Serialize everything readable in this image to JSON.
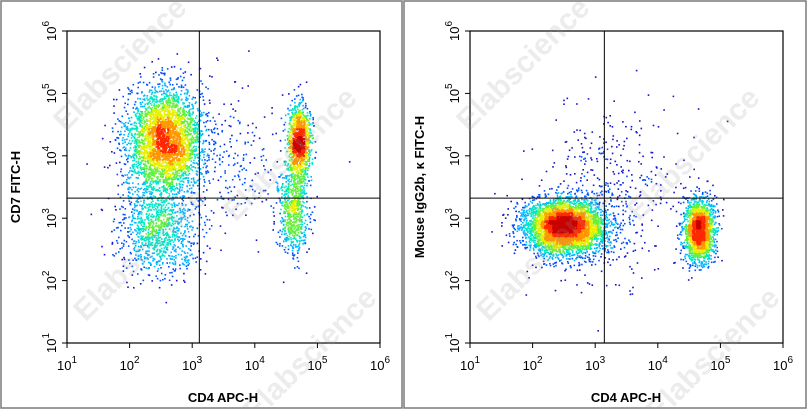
{
  "watermark": "Elabscience",
  "colors": {
    "density_scale": [
      "#1414c8",
      "#0050ff",
      "#00b4ff",
      "#00e6c8",
      "#64f03c",
      "#e6f000",
      "#ff9600",
      "#ff2800",
      "#c80000"
    ],
    "gate_line": "#000000",
    "panel_border": "#7a7a7a"
  },
  "chart_data": [
    {
      "type": "scatter",
      "subtype": "flow-cytometry-density-dot-plot",
      "xlabel": "CD4 APC-H",
      "ylabel": "CD7 FITC-H",
      "xscale": "log",
      "yscale": "log",
      "xlim": [
        10,
        1000000
      ],
      "ylim": [
        10,
        1000000
      ],
      "x_ticks": [
        10,
        100,
        1000,
        10000,
        100000,
        1000000
      ],
      "y_ticks": [
        10,
        100,
        1000,
        10000,
        100000,
        1000000
      ],
      "x_tick_labels": [
        {
          "base": "10",
          "exp": "1"
        },
        {
          "base": "10",
          "exp": "2"
        },
        {
          "base": "10",
          "exp": "3"
        },
        {
          "base": "10",
          "exp": "4"
        },
        {
          "base": "10",
          "exp": "5"
        },
        {
          "base": "10",
          "exp": "6"
        }
      ],
      "y_tick_labels": [
        {
          "base": "10",
          "exp": "1"
        },
        {
          "base": "10",
          "exp": "2"
        },
        {
          "base": "10",
          "exp": "3"
        },
        {
          "base": "10",
          "exp": "4"
        },
        {
          "base": "10",
          "exp": "5"
        },
        {
          "base": "10",
          "exp": "6"
        }
      ],
      "quadrant_gate": {
        "x": 1300,
        "y": 2100
      },
      "populations": [
        {
          "log_x_center": 2.55,
          "log_y_center": 4.25,
          "log_x_sd": 0.3,
          "log_y_sd": 0.42,
          "weight": 0.52
        },
        {
          "log_x_center": 2.45,
          "log_y_center": 2.85,
          "log_x_sd": 0.32,
          "log_y_sd": 0.35,
          "weight": 0.16
        },
        {
          "log_x_center": 4.7,
          "log_y_center": 4.2,
          "log_x_sd": 0.09,
          "log_y_sd": 0.32,
          "weight": 0.18
        },
        {
          "log_x_center": 4.6,
          "log_y_center": 3.1,
          "log_x_sd": 0.12,
          "log_y_sd": 0.35,
          "weight": 0.1
        },
        {
          "log_x_center": 3.5,
          "log_y_center": 3.9,
          "log_x_sd": 0.55,
          "log_y_sd": 0.55,
          "weight": 0.04
        }
      ],
      "grid": false,
      "legend": "none"
    },
    {
      "type": "scatter",
      "subtype": "flow-cytometry-density-dot-plot",
      "xlabel": "CD4 APC-H",
      "ylabel": "Mouse IgG2b, κ FITC-H",
      "xscale": "log",
      "yscale": "log",
      "xlim": [
        10,
        1000000
      ],
      "ylim": [
        10,
        1000000
      ],
      "x_ticks": [
        10,
        100,
        1000,
        10000,
        100000,
        1000000
      ],
      "y_ticks": [
        10,
        100,
        1000,
        10000,
        100000,
        1000000
      ],
      "x_tick_labels": [
        {
          "base": "10",
          "exp": "1"
        },
        {
          "base": "10",
          "exp": "2"
        },
        {
          "base": "10",
          "exp": "3"
        },
        {
          "base": "10",
          "exp": "4"
        },
        {
          "base": "10",
          "exp": "5"
        },
        {
          "base": "10",
          "exp": "6"
        }
      ],
      "y_tick_labels": [
        {
          "base": "10",
          "exp": "1"
        },
        {
          "base": "10",
          "exp": "2"
        },
        {
          "base": "10",
          "exp": "3"
        },
        {
          "base": "10",
          "exp": "4"
        },
        {
          "base": "10",
          "exp": "5"
        },
        {
          "base": "10",
          "exp": "6"
        }
      ],
      "quadrant_gate": {
        "x": 1400,
        "y": 2100
      },
      "populations": [
        {
          "log_x_center": 2.5,
          "log_y_center": 2.87,
          "log_x_sd": 0.33,
          "log_y_sd": 0.22,
          "weight": 0.66
        },
        {
          "log_x_center": 4.65,
          "log_y_center": 2.82,
          "log_x_sd": 0.12,
          "log_y_sd": 0.25,
          "weight": 0.28
        },
        {
          "log_x_center": 3.2,
          "log_y_center": 3.4,
          "log_x_sd": 0.6,
          "log_y_sd": 0.7,
          "weight": 0.06
        }
      ],
      "grid": false,
      "legend": "none"
    }
  ]
}
